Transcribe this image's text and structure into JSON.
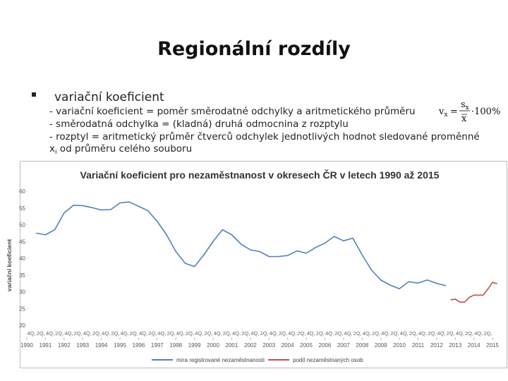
{
  "slide": {
    "title": "Regionální rozdíly",
    "bullet": "variační koeficient",
    "lines": [
      "- variační koeficient = poměr směrodatné odchylky a aritmetického průměru",
      "- směrodatná odchylka = (kladná) druhá odmocnina z rozptylu",
      "- rozptyl = aritmetický průměr čtverců odchylek jednotlivých hodnot sledované proměnné"
    ],
    "line4": {
      "var": "x",
      "sub": "i",
      "text": " od průměru celého souboru"
    },
    "formula": {
      "lhs": "v",
      "lhs_sub": "x",
      "eq": "=",
      "num": "s",
      "num_sub": "x",
      "den": "x",
      "rhs": "·100%"
    }
  },
  "chart_data": {
    "type": "line",
    "title": "Variační koeficient pro nezaměstnanost v okresech ČR v letech 1990 až 2015",
    "y_label": "variační koeficient",
    "xlim": [
      1990,
      2015.3
    ],
    "ylim": [
      20,
      60
    ],
    "yticks": [
      20,
      25,
      30,
      35,
      40,
      45,
      50,
      55,
      60
    ],
    "xticks": [
      1990,
      1991,
      1992,
      1993,
      1994,
      1995,
      1996,
      1997,
      1998,
      1999,
      2000,
      2001,
      2002,
      2003,
      2004,
      2005,
      2006,
      2007,
      2008,
      2009,
      2010,
      2011,
      2012,
      2013,
      2014,
      2015
    ],
    "quarter_ticks": [
      {
        "value": 1990.25,
        "label": "4Q,"
      },
      {
        "value": 1990.75,
        "label": "2Q,"
      },
      {
        "value": 1991.25,
        "label": "4Q,"
      },
      {
        "value": 1991.75,
        "label": "2Q,"
      },
      {
        "value": 1992.25,
        "label": "4Q,"
      },
      {
        "value": 1992.75,
        "label": "2Q,"
      },
      {
        "value": 1993.25,
        "label": "4Q,"
      },
      {
        "value": 1993.75,
        "label": "2Q,"
      },
      {
        "value": 1994.25,
        "label": "4Q,"
      },
      {
        "value": 1994.75,
        "label": "2Q,"
      },
      {
        "value": 1995.25,
        "label": "4Q,"
      },
      {
        "value": 1995.75,
        "label": "2Q,"
      },
      {
        "value": 1996.25,
        "label": "4Q,"
      },
      {
        "value": 1996.75,
        "label": "2Q,"
      },
      {
        "value": 1997.25,
        "label": "4Q,"
      },
      {
        "value": 1997.75,
        "label": "2Q,"
      },
      {
        "value": 1998.25,
        "label": "4Q,"
      },
      {
        "value": 1998.75,
        "label": "2Q,"
      },
      {
        "value": 1999.25,
        "label": "4Q,"
      },
      {
        "value": 1999.75,
        "label": "2Q,"
      },
      {
        "value": 2000.25,
        "label": "4Q,"
      },
      {
        "value": 2000.75,
        "label": "2Q,"
      },
      {
        "value": 2001.25,
        "label": "4Q,"
      },
      {
        "value": 2001.75,
        "label": "2Q,"
      },
      {
        "value": 2002.25,
        "label": "4Q,"
      },
      {
        "value": 2002.75,
        "label": "2Q,"
      },
      {
        "value": 2003.25,
        "label": "4Q,"
      },
      {
        "value": 2003.75,
        "label": "2Q,"
      },
      {
        "value": 2004.25,
        "label": "4Q,"
      },
      {
        "value": 2004.75,
        "label": "2Q,"
      },
      {
        "value": 2005.25,
        "label": "4Q,"
      },
      {
        "value": 2005.75,
        "label": "2Q,"
      },
      {
        "value": 2006.25,
        "label": "4Q,"
      },
      {
        "value": 2006.75,
        "label": "2Q,"
      },
      {
        "value": 2007.25,
        "label": "4Q,"
      },
      {
        "value": 2007.75,
        "label": "2Q,"
      },
      {
        "value": 2008.25,
        "label": "4Q,"
      },
      {
        "value": 2008.75,
        "label": "2Q,"
      },
      {
        "value": 2009.25,
        "label": "4Q,"
      },
      {
        "value": 2009.75,
        "label": "2Q,"
      },
      {
        "value": 2010.25,
        "label": "4Q,"
      },
      {
        "value": 2010.75,
        "label": "2Q,"
      },
      {
        "value": 2011.25,
        "label": "4Q,"
      },
      {
        "value": 2011.75,
        "label": "2Q,"
      },
      {
        "value": 2012.25,
        "label": "4Q,"
      },
      {
        "value": 2012.75,
        "label": "2Q,"
      },
      {
        "value": 2013.25,
        "label": "4Q,"
      },
      {
        "value": 2013.75,
        "label": "2Q,"
      },
      {
        "value": 2014.25,
        "label": "4Q,"
      },
      {
        "value": 2014.75,
        "label": "2Q,"
      }
    ],
    "series": [
      {
        "name": "míra registrované nezaměstnanosti",
        "color": "#4f81bd",
        "x": [
          1990.5,
          1991,
          1991.5,
          1992,
          1992.5,
          1993,
          1993.5,
          1994,
          1994.5,
          1995,
          1995.5,
          1996,
          1996.5,
          1997,
          1997.5,
          1998,
          1998.5,
          1999,
          1999.5,
          2000,
          2000.5,
          2001,
          2001.5,
          2002,
          2002.5,
          2003,
          2003.5,
          2004,
          2004.5,
          2005,
          2005.5,
          2006,
          2006.5,
          2007,
          2007.5,
          2008,
          2008.5,
          2009,
          2009.5,
          2010,
          2010.5,
          2011,
          2011.5,
          2012,
          2012.5
        ],
        "values": [
          47.5,
          47.0,
          48.5,
          53.5,
          55.8,
          55.7,
          55.1,
          54.4,
          54.5,
          56.5,
          56.8,
          55.5,
          54.2,
          51.0,
          47.0,
          42.0,
          38.5,
          37.5,
          41.0,
          45.0,
          48.5,
          47.0,
          44.2,
          42.5,
          42.0,
          40.5,
          40.5,
          40.8,
          42.2,
          41.5,
          43.2,
          44.5,
          46.5,
          45.2,
          46.0,
          41.0,
          36.5,
          33.5,
          32.0,
          30.9,
          33.0,
          32.6,
          33.5,
          32.5,
          31.8
        ]
      },
      {
        "name": "podíl nezaměstnaných osob",
        "color": "#c0504d",
        "x": [
          2012.75,
          2013,
          2013.25,
          2013.5,
          2013.75,
          2014,
          2014.25,
          2014.5,
          2014.75,
          2015,
          2015.25
        ],
        "values": [
          27.6,
          27.8,
          26.9,
          26.9,
          28.3,
          29.0,
          29.0,
          29.0,
          30.8,
          32.8,
          32.4
        ]
      }
    ]
  }
}
